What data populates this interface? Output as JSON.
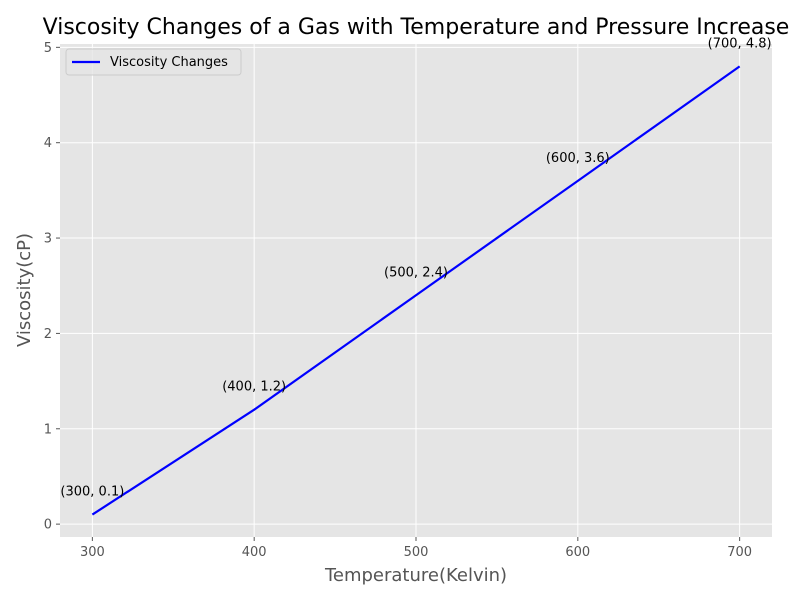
{
  "chart_data": {
    "type": "line",
    "title": "Viscosity Changes of a Gas with Temperature and Pressure Increase",
    "xlabel": "Temperature(Kelvin)",
    "ylabel": "Viscosity(cP)",
    "x": [
      300,
      400,
      500,
      600,
      700
    ],
    "series": [
      {
        "name": "Viscosity Changes",
        "values": [
          0.1,
          1.2,
          2.4,
          3.6,
          4.8
        ],
        "color": "#0000ff"
      }
    ],
    "point_labels": [
      "(300, 0.1)",
      "(400, 1.2)",
      "(500, 2.4)",
      "(600, 3.6)",
      "(700, 4.8)"
    ],
    "xlim": [
      280,
      720
    ],
    "ylim": [
      -0.135,
      5.035
    ],
    "xticks": [
      300,
      400,
      500,
      600,
      700
    ],
    "yticks": [
      0,
      1,
      2,
      3,
      4,
      5
    ],
    "grid": true,
    "legend_position": "upper-left",
    "background_color": "#e5e5e5",
    "grid_color": "#ffffff"
  }
}
